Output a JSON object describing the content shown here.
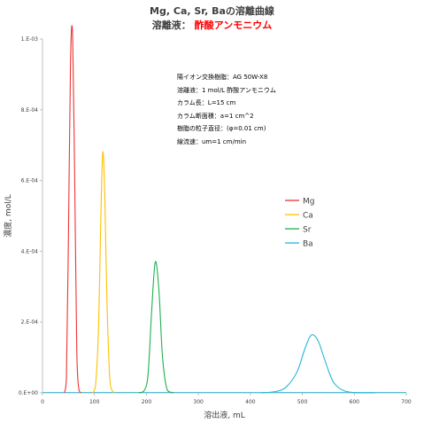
{
  "chart_data": {
    "type": "line",
    "title_main": "Mg, Ca, Sr, Baの溶離曲線",
    "title_sub_prefix": "溶離液：",
    "title_sub_accent": "酢酸アンモニウム",
    "xlabel": "溶出液, mL",
    "ylabel": "濃度, mol/L",
    "xlim": [
      0,
      700
    ],
    "ylim": [
      0,
      0.001
    ],
    "x_ticks": [
      0,
      100,
      200,
      300,
      400,
      500,
      600,
      700
    ],
    "x_tick_labels": [
      "0",
      "100",
      "200",
      "300",
      "400",
      "500",
      "600",
      "700"
    ],
    "y_ticks": [
      0,
      0.0002,
      0.0004,
      0.0006,
      0.0008,
      0.001
    ],
    "y_tick_labels": [
      "0.E+00",
      "2.E-04",
      "4.E-04",
      "6.E-04",
      "8.E-04",
      "1.E-03"
    ],
    "grid": false,
    "legend_placement": "right-middle",
    "annotation_lines": [
      "陽イオン交換樹脂：AG 50W-X8",
      "溶離液：1 mol/L 酢酸アンモニウム",
      "カラム長：L=15 cm",
      "カラム断面積：a=1 cm^2",
      "樹脂の粒子直径：(φ=0.01 cm)",
      "線流速：um=1 cm/min"
    ],
    "series": [
      {
        "name": "Mg",
        "color": "#ee3333",
        "x": [
          42,
          46,
          50,
          54,
          58,
          62,
          66,
          70,
          74
        ],
        "y": [
          0,
          4e-05,
          0.00045,
          0.00094,
          0.00101,
          0.0006,
          0.00012,
          1e-05,
          0
        ]
      },
      {
        "name": "Ca",
        "color": "#ffc000",
        "x": [
          96,
          102,
          108,
          112,
          116,
          120,
          124,
          130,
          138
        ],
        "y": [
          0,
          2e-05,
          0.00019,
          0.00048,
          0.00068,
          0.00055,
          0.00026,
          3e-05,
          0
        ]
      },
      {
        "name": "Sr",
        "color": "#1eb050",
        "x": [
          185,
          195,
          203,
          210,
          217,
          224,
          231,
          240,
          252
        ],
        "y": [
          0,
          5e-06,
          5e-05,
          0.00023,
          0.00037,
          0.00029,
          0.0001,
          8e-06,
          0
        ]
      },
      {
        "name": "Ba",
        "color": "#27b5d8",
        "x": [
          420,
          450,
          470,
          490,
          505,
          517,
          530,
          545,
          560,
          580,
          610,
          640
        ],
        "y": [
          0,
          4e-06,
          1.8e-05,
          6e-05,
          0.000125,
          0.000163,
          0.000148,
          8.5e-05,
          3e-05,
          6e-06,
          0,
          0
        ]
      }
    ]
  }
}
